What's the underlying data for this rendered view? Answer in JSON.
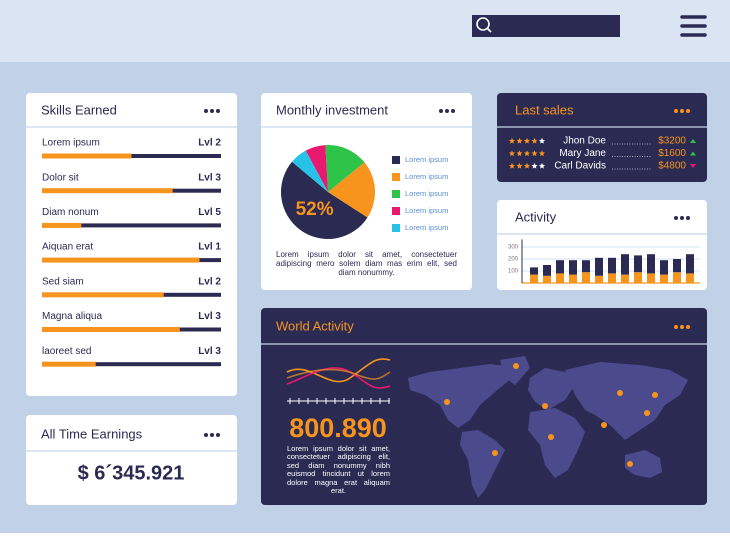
{
  "skills": {
    "title": "Skills Earned",
    "items": [
      {
        "label": "Lorem ipsum",
        "level": "Lvl 2",
        "progress": 50
      },
      {
        "label": "Dolor sit",
        "level": "Lvl 3",
        "progress": 73
      },
      {
        "label": "Diam nonum",
        "level": "Lvl 5",
        "progress": 22
      },
      {
        "label": "Aiquan erat",
        "level": "Lvl 1",
        "progress": 88
      },
      {
        "label": "Sed siam",
        "level": "Lvl 2",
        "progress": 68
      },
      {
        "label": "Magna aliqua",
        "level": "Lvl 3",
        "progress": 77
      },
      {
        "label": "laoreet sed",
        "level": "Lvl 3",
        "progress": 30
      }
    ]
  },
  "earnings": {
    "title": "All Time Earnings",
    "value": "$ 6´345.921"
  },
  "investment": {
    "title": "Monthly investment",
    "chart": {
      "type": "pie",
      "slices": [
        {
          "name": "Lorem ipsum",
          "value": 52,
          "label": "52%",
          "color": "#2b2a52"
        },
        {
          "name": "Lorem ipsum",
          "value": 20,
          "color": "#f7941d"
        },
        {
          "name": "Lorem ipsum",
          "value": 15,
          "color": "#2ec44a"
        },
        {
          "name": "Lorem ipsum",
          "value": 7,
          "color": "#e8196f"
        },
        {
          "name": "Lorem ipsum",
          "value": 6,
          "color": "#27c2e8"
        }
      ]
    },
    "text": "Lorem ipsum dolor sit amet, consectetuer adipiscing mero solem diam mas erim elit, sed diam nonummy."
  },
  "last_sales": {
    "title": "Last sales",
    "rows": [
      {
        "rating": 4,
        "name": "Jhon Doe",
        "amount": "$3200",
        "trend": "up"
      },
      {
        "rating": 5,
        "name": "Mary Jane",
        "amount": "$1600",
        "trend": "up"
      },
      {
        "rating": 3,
        "name": "Carl Davids",
        "amount": "$4800",
        "trend": "down"
      }
    ]
  },
  "activity": {
    "title": "Activity",
    "chart": {
      "type": "bar",
      "stacked": true,
      "ylim": [
        0,
        330
      ],
      "yticks": [
        100,
        200,
        300
      ],
      "grid": true,
      "series": [
        {
          "color": "#f7941d",
          "values": [
            70,
            60,
            80,
            70,
            90,
            60,
            80,
            70,
            90,
            80,
            70,
            90,
            80
          ]
        },
        {
          "color": "#2b2a52",
          "values": [
            60,
            90,
            110,
            120,
            100,
            150,
            130,
            170,
            140,
            160,
            120,
            110,
            160
          ]
        }
      ]
    }
  },
  "world": {
    "title": "World Activity",
    "value": "800.890",
    "text": "Lorem ipsum dolor sit amet, consectetuer adipiscing elit, sed diam nonummy nibh euismod tincidunt ut lorem dolore magna erat aliquam erat."
  }
}
